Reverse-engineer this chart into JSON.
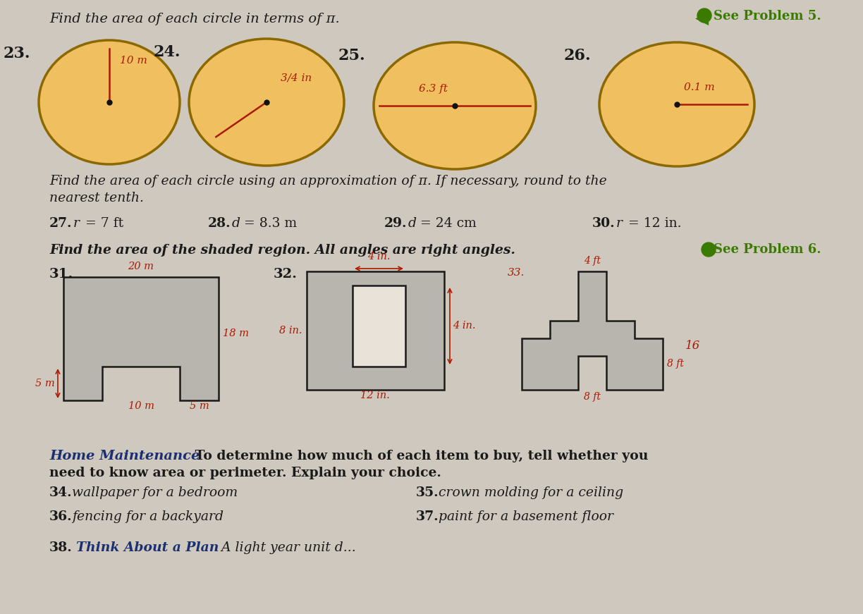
{
  "bg_color": "#cfc8be",
  "text_color": "#1a1a1a",
  "red_color": "#aa1a00",
  "blue_color": "#1a3070",
  "green_color": "#3a7a00",
  "circle_fill": "#f0c060",
  "circle_edge": "#8b6800",
  "shape_fill": "#b8b4ae",
  "shape_edge": "#1a1a1a",
  "see_problem_color": "#3a7000",
  "header1": "Find the area of each circle in terms of π.",
  "see5": "See Problem 5.",
  "see6": "See Problem 6.",
  "header2a": "Find the area of each circle using an approximation of π. If necessary, round to the",
  "header2b": "nearest tenth.",
  "n27": "27.",
  "t27a": "r",
  "t27b": " = 7 ft",
  "n28": "28.",
  "t28a": "d",
  "t28b": " = 8.3 m",
  "n29": "29.",
  "t29a": "d",
  "t29b": " = 24 cm",
  "n30": "30.",
  "t30a": "r",
  "t30b": " = 12 in.",
  "header3": "Find the area of the shaded region. All angles are right angles.",
  "num31": "31.",
  "num32": "32.",
  "num33": "33.",
  "label31_top": "20 m",
  "label31_right": "18 m",
  "label31_left": "5 m",
  "label31_bot_left": "10 m",
  "label31_bot_right": "5 m",
  "label32_top": "4 in.",
  "label32_left": "8 in.",
  "label32_bot": "12 in.",
  "label32_right": "4 in.",
  "label33_top": "4 ft",
  "label33_right": "8 ft",
  "label33_bot": "8 ft",
  "label33_side": "16",
  "hm_bold": "Home Maintenance",
  "hm_rest": " To determine how much of each item to buy, tell whether you",
  "hm_line2": "need to know area or perimeter. Explain your choice.",
  "n34": "34.",
  "t34": "wallpaper for a bedroom",
  "n35": "35.",
  "t35": "crown molding for a ceiling",
  "n36": "36.",
  "t36": "fencing for a backyard",
  "n37": "37.",
  "t37": "paint for a basement floor",
  "n38": "38.",
  "t38bold": "Think About a Plan",
  "t38rest": " A light year unit d..."
}
